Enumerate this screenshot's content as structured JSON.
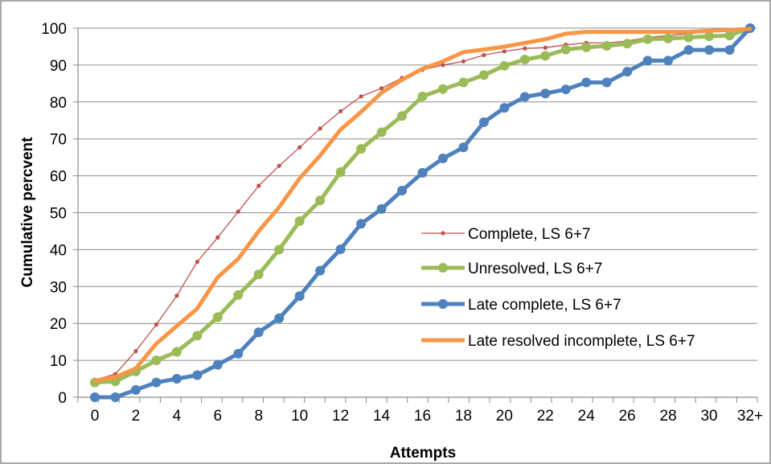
{
  "chart_data": {
    "type": "line",
    "title": "",
    "xlabel": "Attempts",
    "ylabel": "Cumulative percvent",
    "x": [
      "0",
      "1",
      "2",
      "3",
      "4",
      "5",
      "6",
      "7",
      "8",
      "9",
      "10",
      "11",
      "12",
      "13",
      "14",
      "15",
      "16",
      "17",
      "18",
      "19",
      "20",
      "21",
      "22",
      "23",
      "24",
      "25",
      "26",
      "27",
      "28",
      "29",
      "30",
      "31",
      "32+"
    ],
    "x_tick_labels": [
      "0",
      "2",
      "4",
      "6",
      "8",
      "10",
      "12",
      "14",
      "16",
      "18",
      "20",
      "22",
      "24",
      "26",
      "28",
      "30",
      "32+"
    ],
    "ylim": [
      0,
      100
    ],
    "y_ticks": [
      0,
      10,
      20,
      30,
      40,
      50,
      60,
      70,
      80,
      90,
      100
    ],
    "grid": "horizontal",
    "legend_position": "right",
    "series": [
      {
        "name": "Complete, LS 6+7",
        "color": "#C0504D",
        "style": "thin-small-markers",
        "values": [
          4.7,
          6.3,
          12.5,
          19.7,
          27.5,
          36.7,
          43.3,
          50.3,
          57.3,
          62.7,
          67.7,
          72.8,
          77.5,
          81.5,
          83.7,
          86.5,
          88.7,
          90.0,
          91.0,
          92.7,
          93.7,
          94.5,
          94.7,
          95.5,
          96.0,
          96.0,
          96.5,
          97.5,
          98.0,
          98.5,
          99.0,
          99.3,
          100
        ]
      },
      {
        "name": "Unresolved, LS 6+7",
        "color": "#9BBB59",
        "style": "thick-markers",
        "values": [
          4.0,
          4.3,
          7.0,
          10.0,
          12.3,
          16.7,
          21.7,
          27.7,
          33.3,
          40.0,
          47.7,
          53.3,
          61.0,
          67.3,
          71.8,
          76.2,
          81.5,
          83.5,
          85.3,
          87.3,
          89.8,
          91.5,
          92.5,
          94.2,
          94.8,
          95.2,
          95.8,
          97.0,
          97.2,
          97.5,
          97.8,
          98.0,
          100
        ]
      },
      {
        "name": "Late complete, LS 6+7",
        "color": "#4F81BD",
        "style": "thick-markers",
        "values": [
          0.0,
          0.0,
          2.0,
          4.0,
          5.0,
          6.0,
          8.8,
          11.8,
          17.6,
          21.4,
          27.4,
          34.3,
          40.1,
          47.0,
          51.0,
          56.0,
          60.8,
          64.7,
          67.7,
          74.5,
          78.4,
          81.4,
          82.3,
          83.4,
          85.3,
          85.3,
          88.2,
          91.2,
          91.2,
          94.1,
          94.1,
          94.1,
          100
        ]
      },
      {
        "name": "Late resolved incomplete, LS 6+7",
        "color": "#F79646",
        "style": "thick-no-markers",
        "values": [
          4.5,
          5.5,
          7.8,
          14.5,
          19.3,
          24.0,
          32.5,
          37.5,
          45.0,
          51.5,
          59.3,
          65.5,
          72.5,
          77.3,
          82.5,
          86.0,
          89.0,
          91.0,
          93.5,
          94.2,
          95.0,
          96.0,
          97.0,
          98.5,
          99.0,
          99.0,
          99.0,
          99.0,
          99.0,
          99.0,
          99.3,
          99.5,
          99.8
        ]
      }
    ]
  }
}
